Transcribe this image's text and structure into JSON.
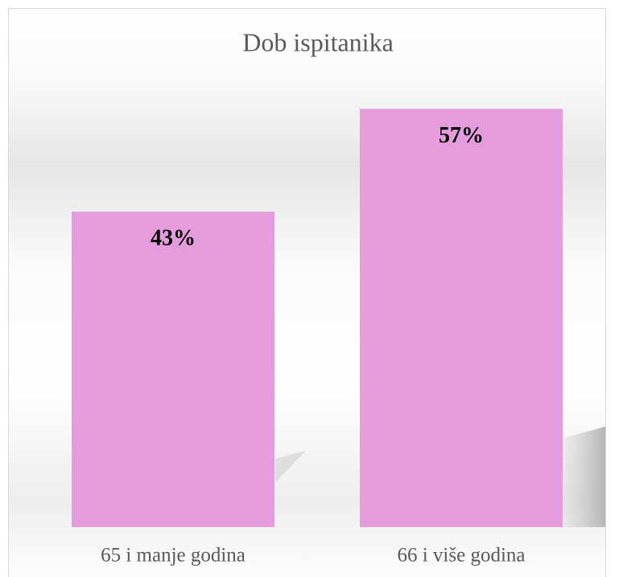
{
  "chart_data": {
    "type": "bar",
    "title": "Dob ispitanika",
    "categories": [
      "65 i manje godina",
      "66 i više godina"
    ],
    "values": [
      43,
      57
    ],
    "value_labels": [
      "43%",
      "57%"
    ],
    "color": "#e49cdc",
    "ylim": [
      0,
      60
    ]
  }
}
